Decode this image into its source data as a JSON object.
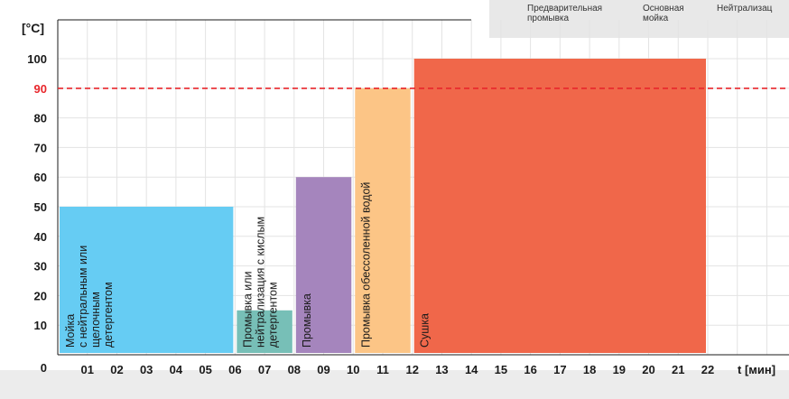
{
  "legend": {
    "items": [
      "Предварительная\nпромывка",
      "Основная\nмойка",
      "Нейтрализац"
    ]
  },
  "chart_data": {
    "type": "bar",
    "ylabel": "[°C]",
    "xlabel": "t [мин]",
    "ylim": [
      0,
      110
    ],
    "xlim": [
      0,
      26
    ],
    "y_ticks": [
      "0",
      "10",
      "20",
      "30",
      "40",
      "50",
      "60",
      "70",
      "80",
      "90",
      "100"
    ],
    "x_ticks": [
      {
        "x": 1,
        "label": "01"
      },
      {
        "x": 2,
        "label": "02"
      },
      {
        "x": 3,
        "label": "03"
      },
      {
        "x": 4,
        "label": "04"
      },
      {
        "x": 5,
        "label": "05"
      },
      {
        "x": 6,
        "label": "06"
      },
      {
        "x": 7,
        "label": "07"
      },
      {
        "x": 8,
        "label": "08"
      },
      {
        "x": 9,
        "label": "09"
      },
      {
        "x": 10,
        "label": "10"
      },
      {
        "x": 11,
        "label": "11"
      },
      {
        "x": 12,
        "label": "12"
      },
      {
        "x": 13,
        "label": "13"
      },
      {
        "x": 14,
        "label": "14"
      },
      {
        "x": 15,
        "label": "15"
      },
      {
        "x": 16,
        "label": "16"
      },
      {
        "x": 17,
        "label": "17"
      },
      {
        "x": 18,
        "label": "18"
      },
      {
        "x": 19,
        "label": "19"
      },
      {
        "x": 20,
        "label": "20"
      },
      {
        "x": 21,
        "label": "21"
      },
      {
        "x": 22,
        "label": "22"
      }
    ],
    "threshold": {
      "value": 90,
      "label": "90",
      "color": "#e8262b"
    },
    "phases": [
      {
        "start": 0,
        "end": 6,
        "value": 50,
        "color": "#66ccf3",
        "lines": [
          "Мойка",
          "с нейтральным или",
          "щелочным",
          "детергентом"
        ]
      },
      {
        "start": 6,
        "end": 8,
        "value": 15,
        "color": "#77bfb7",
        "lines": [
          "Промывка или",
          "нейтрализация с кислым",
          "детергентом"
        ]
      },
      {
        "start": 8,
        "end": 10,
        "value": 60,
        "color": "#a585bd",
        "lines": [
          "Промывка"
        ]
      },
      {
        "start": 10,
        "end": 12,
        "value": 90,
        "color": "#fcc586",
        "lines": [
          "Промывка обессоленной водой"
        ]
      },
      {
        "start": 12,
        "end": 22,
        "value": 100,
        "color": "#f0674a",
        "lines": [
          "Сушка"
        ]
      }
    ],
    "grid": true,
    "colors": {
      "axis": "#1a1a1a",
      "grid": "#e3e3e3",
      "tick_text": "#1a1a1a",
      "bar_text": "#1a1a1a"
    }
  }
}
